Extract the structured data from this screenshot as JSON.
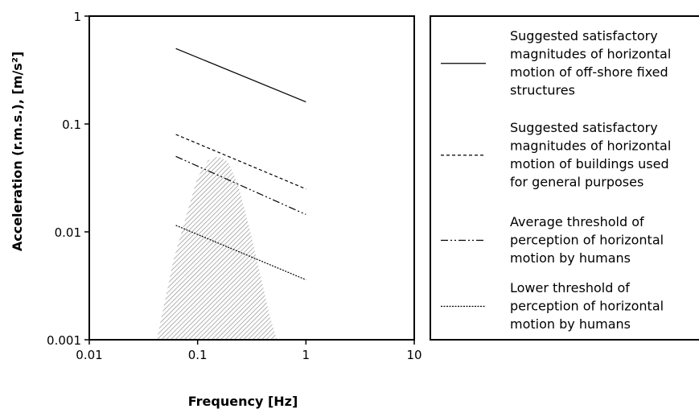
{
  "chart_data": {
    "type": "line",
    "xlabel": "Frequency [Hz]",
    "ylabel": "Acceleration (r.m.s.), [m/s²]",
    "xscale": "log",
    "yscale": "log",
    "xlim": [
      0.01,
      10
    ],
    "ylim": [
      0.001,
      1
    ],
    "x_ticks": [
      "0.01",
      "0.1",
      "1",
      "10"
    ],
    "y_ticks": [
      "0.001",
      "0.01",
      "0.1",
      "1"
    ],
    "grid": false,
    "legend_position": "right",
    "series": [
      {
        "name": "Suggested satisfactory magnitudes of horizontal motion of off-shore fixed structures",
        "style": "solid",
        "x": [
          0.063,
          1
        ],
        "y": [
          0.5,
          0.16
        ]
      },
      {
        "name": "Suggested satisfactory magnitudes of horizontal motion of buildings used for general purposes",
        "style": "dashed",
        "x": [
          0.063,
          1
        ],
        "y": [
          0.08,
          0.025
        ]
      },
      {
        "name": "Average threshold of perception of horizontal motion by humans",
        "style": "dash-dot-dot",
        "x": [
          0.063,
          1
        ],
        "y": [
          0.05,
          0.0145
        ]
      },
      {
        "name": "Lower threshold of perception of horizontal motion by humans",
        "style": "dotted",
        "x": [
          0.063,
          1
        ],
        "y": [
          0.0115,
          0.0036
        ]
      }
    ],
    "shaded_region": {
      "fill": "hatched",
      "x": [
        0.042,
        0.06,
        0.08,
        0.1,
        0.125,
        0.155,
        0.19,
        0.235,
        0.3,
        0.38,
        0.46,
        0.54
      ],
      "y": [
        0.001,
        0.0055,
        0.015,
        0.032,
        0.046,
        0.05,
        0.045,
        0.028,
        0.011,
        0.004,
        0.0017,
        0.001
      ]
    }
  }
}
